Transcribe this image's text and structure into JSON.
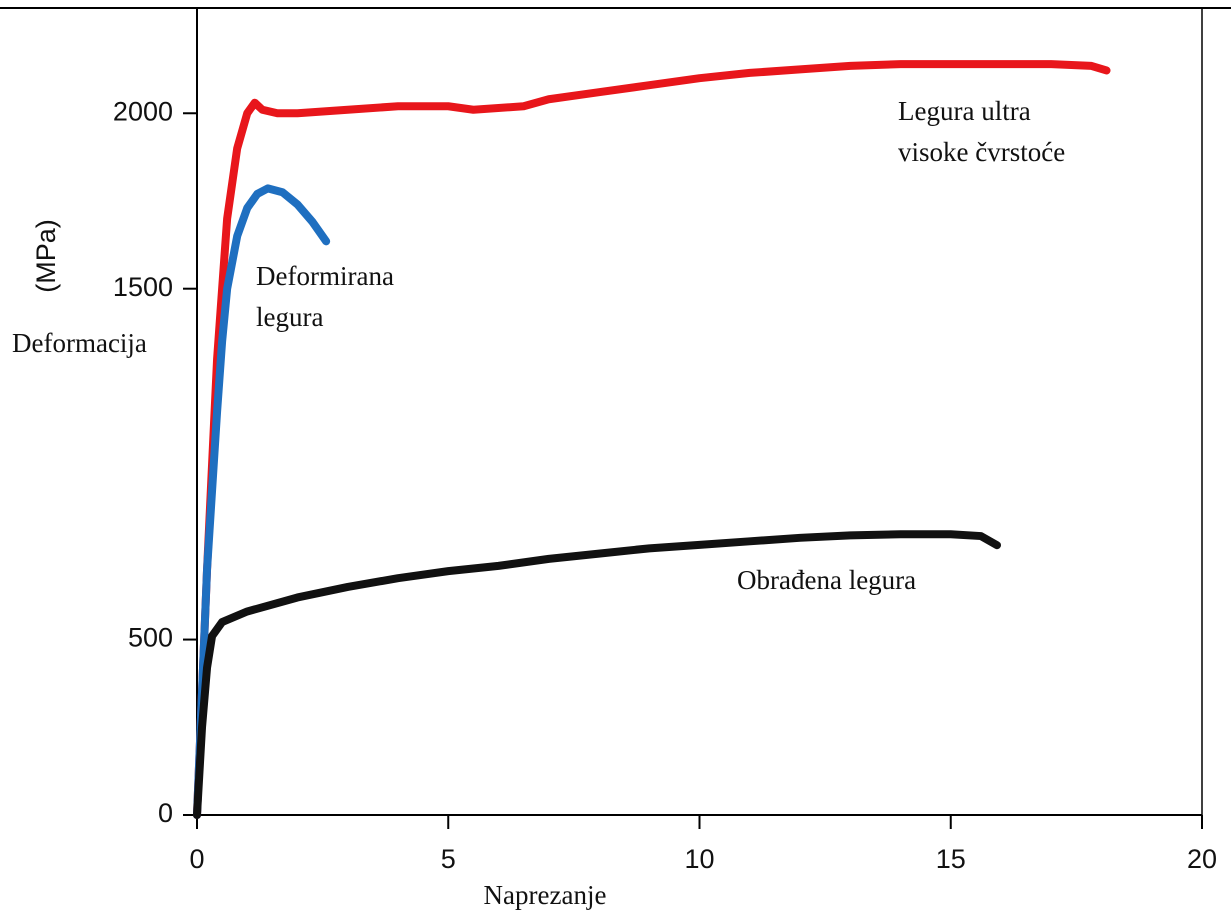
{
  "chart_data": {
    "type": "line",
    "xlabel": "Naprezanje",
    "ylabel": "(MPa)",
    "ylabel2": "Deformacija",
    "xlim": [
      0,
      20
    ],
    "xticks": [
      0,
      5,
      10,
      15,
      20
    ],
    "ylim": [
      0,
      2300
    ],
    "yticks": [
      0,
      500,
      1500,
      2000
    ],
    "series": [
      {
        "color": "#e8161b",
        "x": [
          0,
          0.2,
          0.4,
          0.6,
          0.8,
          1.0,
          1.15,
          1.3,
          1.6,
          2,
          3,
          4,
          5,
          5.5,
          6.5,
          7,
          8,
          9,
          10,
          11,
          12,
          13,
          14,
          15,
          16,
          17,
          17.8,
          18.1
        ],
        "values": [
          0,
          700,
          1300,
          1700,
          1900,
          2000,
          2030,
          2010,
          2000,
          2000,
          2010,
          2020,
          2020,
          2010,
          2020,
          2040,
          2060,
          2080,
          2100,
          2115,
          2125,
          2135,
          2140,
          2140,
          2140,
          2140,
          2135,
          2122
        ]
      },
      {
        "color": "#1f6fc0",
        "x": [
          0,
          0.2,
          0.4,
          0.5,
          0.6,
          0.8,
          1.0,
          1.2,
          1.41,
          1.7,
          2.0,
          2.3,
          2.57
        ],
        "values": [
          0,
          700,
          1150,
          1350,
          1500,
          1650,
          1730,
          1770,
          1786,
          1775,
          1740,
          1690,
          1635
        ]
      },
      {
        "color": "#111111",
        "x": [
          0,
          0.1,
          0.2,
          0.3,
          0.5,
          1,
          2,
          3,
          4,
          5,
          6,
          7,
          8,
          9,
          10,
          11,
          12,
          13,
          14,
          15,
          15.6,
          15.92
        ],
        "values": [
          0,
          250,
          420,
          510,
          550,
          580,
          620,
          650,
          675,
          695,
          710,
          730,
          745,
          760,
          770,
          780,
          790,
          797,
          800,
          800,
          795,
          769
        ]
      }
    ],
    "annotations": [
      {
        "lines": [
          "Legura ultra",
          "visoke čvrstoće"
        ]
      },
      {
        "lines": [
          "Deformirana",
          "legura"
        ]
      },
      {
        "lines": [
          "Obrađena legura"
        ]
      }
    ]
  }
}
